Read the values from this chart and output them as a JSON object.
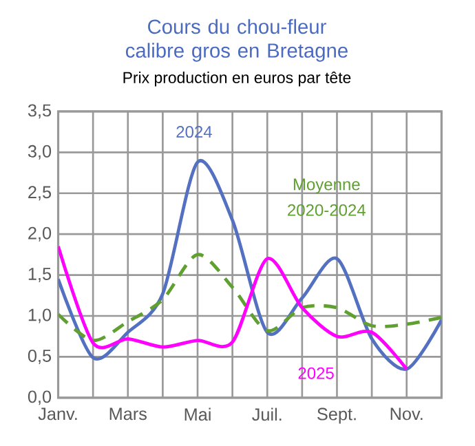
{
  "chart_data": {
    "type": "line",
    "title": "Cours du chou-fleur calibre gros en Bretagne",
    "subtitle": "Prix production en euros par tête",
    "categories": [
      "Janv.",
      null,
      "Mars",
      null,
      "Mai",
      null,
      "Juil.",
      null,
      "Sept.",
      null,
      "Nov.",
      null
    ],
    "series": [
      {
        "name": "2024",
        "color": "#5470c0",
        "values": [
          1.45,
          0.49,
          0.8,
          1.27,
          2.88,
          2.17,
          0.8,
          1.22,
          1.7,
          0.72,
          0.35,
          0.95
        ]
      },
      {
        "name": "Moyenne 2020-2024",
        "color": "#5fa030",
        "line_style": "dashed",
        "values": [
          1.02,
          0.7,
          0.93,
          1.2,
          1.75,
          1.35,
          0.82,
          1.1,
          1.1,
          0.88,
          0.9,
          0.98
        ]
      },
      {
        "name": "2025",
        "color": "#ff00ff",
        "values": [
          1.85,
          0.67,
          0.72,
          0.62,
          0.7,
          0.68,
          1.7,
          1.1,
          0.75,
          0.8,
          0.35,
          null
        ]
      }
    ],
    "ylim": [
      0,
      3.5
    ],
    "yticks": [
      {
        "value": 0,
        "label": "0,0"
      },
      {
        "value": 0.5,
        "label": "0,5"
      },
      {
        "value": 1,
        "label": "1,0"
      },
      {
        "value": 1.5,
        "label": "1,5"
      },
      {
        "value": 2,
        "label": "2,0"
      },
      {
        "value": 2.5,
        "label": "2,5"
      },
      {
        "value": 3,
        "label": "3,0"
      },
      {
        "value": 3.5,
        "label": "3,5"
      }
    ],
    "grid": true,
    "legend": false,
    "marker": "none",
    "line_style": "solid"
  }
}
